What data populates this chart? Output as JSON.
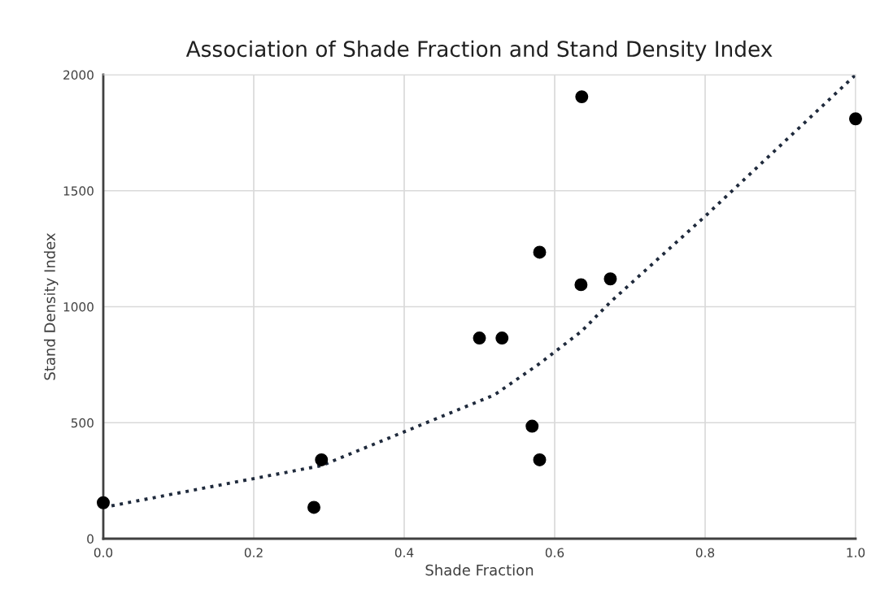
{
  "chart_data": {
    "type": "scatter",
    "title": "Association of Shade Fraction and Stand Density Index",
    "xlabel": "Shade Fraction",
    "ylabel": "Stand Density Index",
    "series": [
      {
        "color": "#000000",
        "marker": "circle",
        "x": [
          0.0,
          0.28,
          0.29,
          0.5,
          0.53,
          0.57,
          0.58,
          0.58,
          0.636,
          0.635,
          0.674,
          1.0
        ],
        "values": [
          155,
          135,
          340,
          865,
          865,
          485,
          340,
          1235,
          1905,
          1095,
          1120,
          1810
        ]
      },
      {
        "type": "line",
        "color": "#1f2a3c",
        "line_style": "dotted",
        "marker": "none",
        "x": [
          0.0,
          0.29,
          0.52,
          0.58,
          0.636,
          0.674,
          0.8,
          1.0
        ],
        "values": [
          135,
          315,
          620,
          755,
          895,
          1020,
          1390,
          2000
        ]
      }
    ],
    "xlim": [
      0,
      1.0
    ],
    "ylim": [
      0,
      2000
    ],
    "xticks": [
      {
        "value": 0,
        "label": "0.0"
      },
      0.2,
      0.4,
      0.6,
      0.8,
      {
        "value": 1.0,
        "label": "1.0"
      }
    ],
    "yticks": [
      0,
      500,
      1000,
      1500,
      2000
    ],
    "grid": true,
    "legend": false
  }
}
